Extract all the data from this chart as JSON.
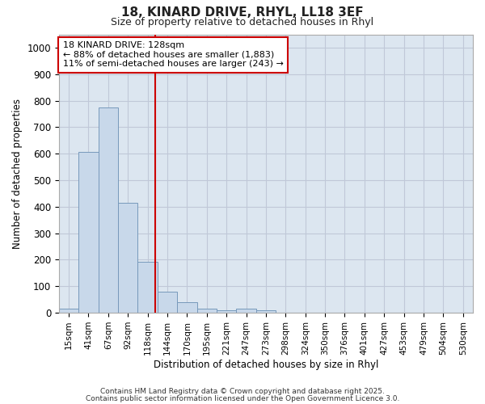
{
  "title1": "18, KINARD DRIVE, RHYL, LL18 3EF",
  "title2": "Size of property relative to detached houses in Rhyl",
  "xlabel": "Distribution of detached houses by size in Rhyl",
  "ylabel": "Number of detached properties",
  "categories": [
    "15sqm",
    "41sqm",
    "67sqm",
    "92sqm",
    "118sqm",
    "144sqm",
    "170sqm",
    "195sqm",
    "221sqm",
    "247sqm",
    "273sqm",
    "298sqm",
    "324sqm",
    "350sqm",
    "376sqm",
    "401sqm",
    "427sqm",
    "453sqm",
    "479sqm",
    "504sqm",
    "530sqm"
  ],
  "values": [
    15,
    608,
    773,
    414,
    193,
    78,
    40,
    17,
    10,
    15,
    10,
    0,
    0,
    0,
    0,
    0,
    0,
    0,
    0,
    0,
    0
  ],
  "bar_color": "#c8d8ea",
  "bar_edge_color": "#7799bb",
  "grid_color": "#c0c8d8",
  "bg_color": "#dce6f0",
  "vline_x": 4.38,
  "vline_color": "#cc0000",
  "annotation_text": "18 KINARD DRIVE: 128sqm\n← 88% of detached houses are smaller (1,883)\n11% of semi-detached houses are larger (243) →",
  "annotation_box_color": "#cc0000",
  "annotation_bg": "#ffffff",
  "ylim": [
    0,
    1050
  ],
  "yticks": [
    0,
    100,
    200,
    300,
    400,
    500,
    600,
    700,
    800,
    900,
    1000
  ],
  "footer1": "Contains HM Land Registry data © Crown copyright and database right 2025.",
  "footer2": "Contains public sector information licensed under the Open Government Licence 3.0.",
  "fig_bg": "#ffffff"
}
